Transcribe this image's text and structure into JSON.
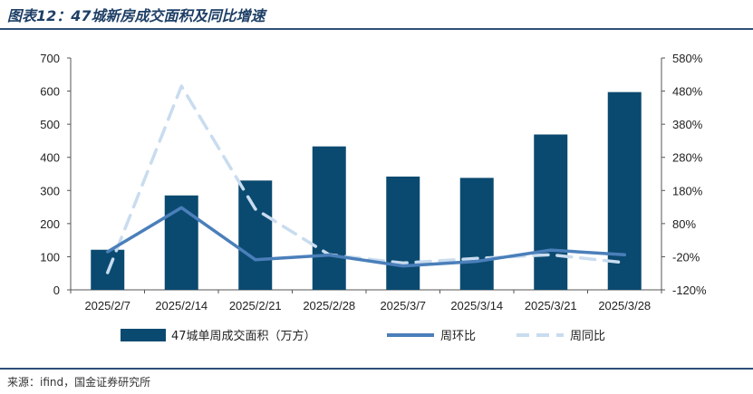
{
  "header": {
    "title": "图表12：47城新房成交面积及同比增速"
  },
  "footer": {
    "source": "来源：ifind，国金证券研究所"
  },
  "colors": {
    "bar": "#0b4a70",
    "wow": "#4a7fba",
    "yoy": "#c9dcef",
    "rule": "#2e4f77"
  },
  "chart_data": {
    "type": "bar",
    "categories": [
      "2025/2/7",
      "2025/2/14",
      "2025/2/21",
      "2025/2/28",
      "2025/3/7",
      "2025/3/14",
      "2025/3/21",
      "2025/3/28"
    ],
    "series": [
      {
        "name": "47城单周成交面积（万方）",
        "type": "bar",
        "axis": "left",
        "values": [
          121,
          285,
          330,
          433,
          342,
          338,
          469,
          597
        ]
      },
      {
        "name": "周环比",
        "type": "line",
        "axis": "right",
        "values": [
          -5,
          128,
          -29,
          -15,
          -48,
          -34,
          0,
          -14
        ]
      },
      {
        "name": "周同比",
        "type": "line",
        "style": "dashed",
        "axis": "right",
        "values": [
          -68,
          495,
          124,
          -14,
          -39,
          -25,
          -14,
          -38
        ]
      }
    ],
    "left_axis": {
      "min": 0,
      "max": 700,
      "step": 100,
      "ticks": [
        "0",
        "100",
        "200",
        "300",
        "400",
        "500",
        "600",
        "700"
      ]
    },
    "right_axis": {
      "min": -120,
      "max": 580,
      "step": 100,
      "ticks": [
        "-120%",
        "-20%",
        "80%",
        "180%",
        "280%",
        "380%",
        "480%",
        "580%"
      ]
    },
    "grid": false,
    "legend": "bottom"
  }
}
